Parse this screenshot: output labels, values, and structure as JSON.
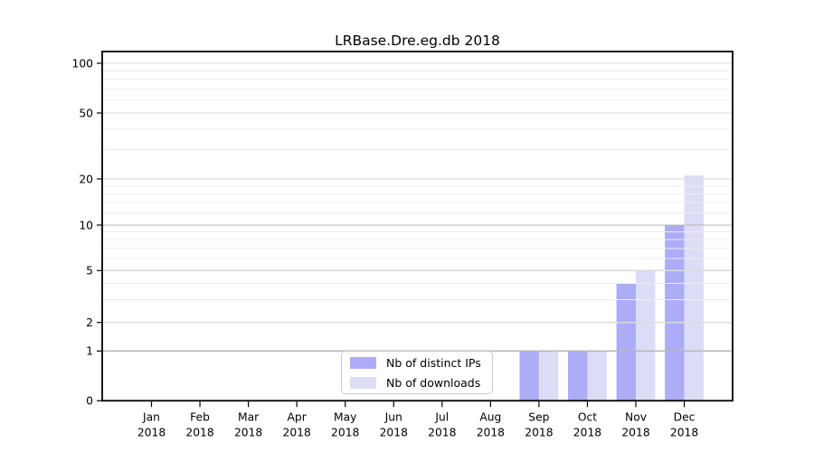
{
  "chart_data": {
    "type": "bar",
    "title": "LRBase.Dre.eg.db 2018",
    "x_months": [
      "Jan",
      "Feb",
      "Mar",
      "Apr",
      "May",
      "Jun",
      "Jul",
      "Aug",
      "Sep",
      "Oct",
      "Nov",
      "Dec"
    ],
    "x_year": "2018",
    "series": [
      {
        "name": "Nb of distinct IPs",
        "color": "#acacf7",
        "values": [
          0,
          0,
          0,
          0,
          0,
          0,
          0,
          0,
          1,
          1,
          4,
          10
        ]
      },
      {
        "name": "Nb of downloads",
        "color": "#dcdcf7",
        "values": [
          0,
          0,
          0,
          0,
          0,
          0,
          0,
          0,
          1,
          1,
          5,
          21
        ]
      }
    ],
    "y_ticks": [
      0,
      1,
      2,
      5,
      10,
      20,
      50,
      100
    ],
    "y_minor_ticks": [
      3,
      4,
      6,
      7,
      8,
      9,
      12,
      14,
      16,
      18,
      30,
      40,
      60,
      70,
      80,
      90
    ],
    "y_scale": "log-like (0 at baseline)",
    "ylim": [
      0,
      115
    ],
    "grid": "horizontal",
    "legend_position": "inside bottom-center"
  },
  "colors": {
    "bar_distinct_ips": "#acacf7",
    "bar_downloads": "#dcdcf7",
    "grid_dark": "#b7b7b7",
    "grid_light": "#dadada",
    "grid_minor": "#ededed",
    "axis": "#000000",
    "text": "#000000"
  }
}
